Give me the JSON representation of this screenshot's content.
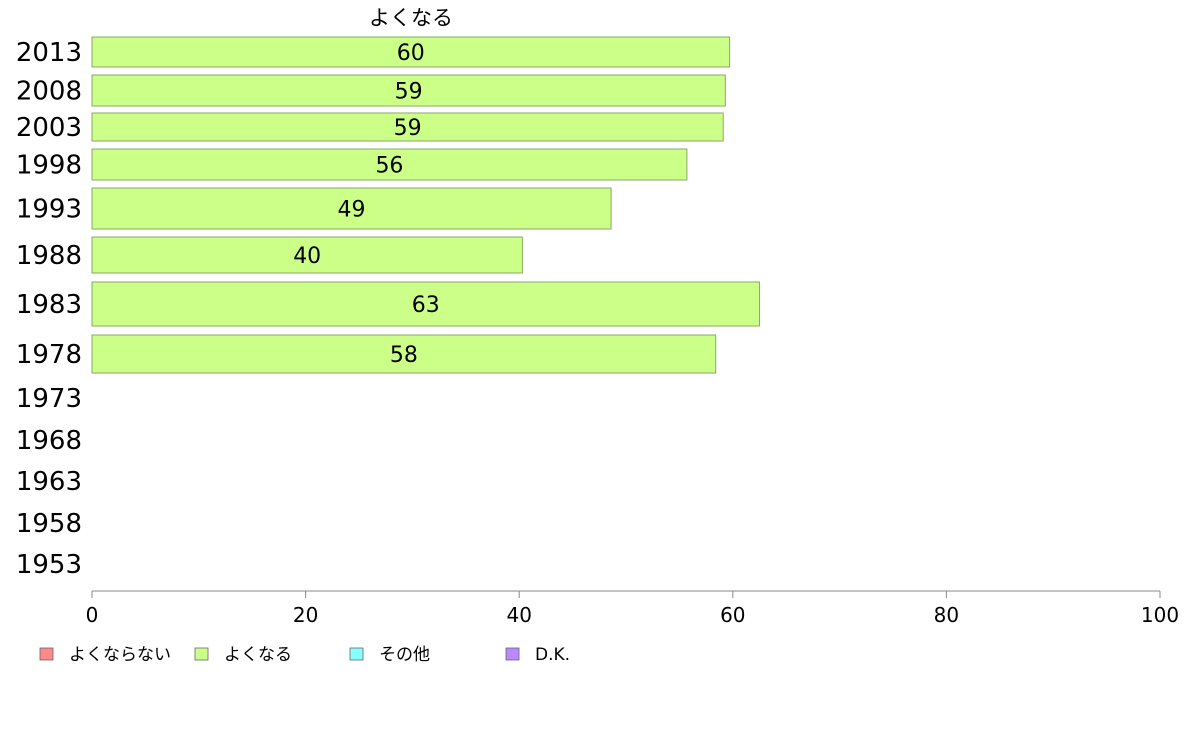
{
  "chart_data": {
    "type": "bar",
    "orientation": "horizontal",
    "title": "よくなる",
    "categories": [
      "2013",
      "2008",
      "2003",
      "1998",
      "1993",
      "1988",
      "1983",
      "1978",
      "1973",
      "1968",
      "1963",
      "1958",
      "1953"
    ],
    "series": [
      {
        "name": "よくなる",
        "color": "#ccff88",
        "values": [
          59.7,
          59.3,
          59.1,
          55.7,
          48.6,
          40.3,
          62.5,
          58.4,
          null,
          null,
          null,
          null,
          null
        ],
        "labels": [
          "60",
          "59",
          "59",
          "56",
          "49",
          "40",
          "63",
          "58",
          "",
          "",
          "",
          "",
          ""
        ]
      }
    ],
    "xlim": [
      0,
      100
    ],
    "xticks": [
      "0",
      "20",
      "40",
      "60",
      "80",
      "100"
    ],
    "legend": {
      "placement": "bottom-left",
      "items": [
        {
          "label": "よくならない",
          "color": "#ff8888"
        },
        {
          "label": "よくなる",
          "color": "#ccff88"
        },
        {
          "label": "その他",
          "color": "#88ffff"
        },
        {
          "label": "D.K.",
          "color": "#bb88ff"
        }
      ]
    },
    "bar_border_color": "#88aa66",
    "axis_color": "#888888",
    "grid": false
  }
}
